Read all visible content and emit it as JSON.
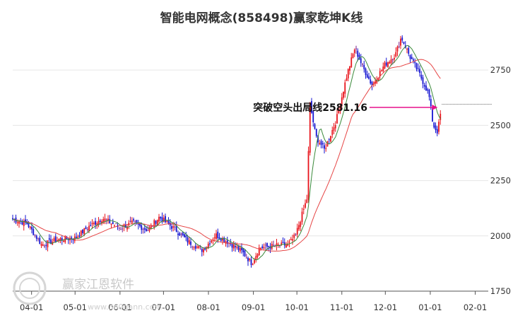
{
  "chart_data": {
    "type": "candlestick",
    "title": "智能电网概念(858498)赢家乾坤K线",
    "x_tick_labels": [
      "04-01",
      "05-01",
      "06-01",
      "07-01",
      "08-01",
      "09-01",
      "10-01",
      "11-01",
      "12-01",
      "01-01",
      "02-01"
    ],
    "y_ticks": [
      1750,
      2000,
      2250,
      2500,
      2750
    ],
    "ylim": [
      1750,
      2920
    ],
    "annotation": {
      "text": "突破空头出局线2581.16",
      "value": 2581.16
    },
    "last_close": 2596,
    "close_path": [
      {
        "date": "03-19",
        "close": 2075
      },
      {
        "date": "03-29",
        "close": 2055
      },
      {
        "date": "04-08",
        "close": 1960
      },
      {
        "date": "04-20",
        "close": 1985
      },
      {
        "date": "05-01",
        "close": 1990
      },
      {
        "date": "05-10",
        "close": 2040
      },
      {
        "date": "05-20",
        "close": 2080
      },
      {
        "date": "06-01",
        "close": 2035
      },
      {
        "date": "06-10",
        "close": 2060
      },
      {
        "date": "06-20",
        "close": 2025
      },
      {
        "date": "06-28",
        "close": 2085
      },
      {
        "date": "07-08",
        "close": 2035
      },
      {
        "date": "07-18",
        "close": 1975
      },
      {
        "date": "07-28",
        "close": 1935
      },
      {
        "date": "08-06",
        "close": 2005
      },
      {
        "date": "08-15",
        "close": 1970
      },
      {
        "date": "08-24",
        "close": 1930
      },
      {
        "date": "08-31",
        "close": 1875
      },
      {
        "date": "09-05",
        "close": 1945
      },
      {
        "date": "09-15",
        "close": 1955
      },
      {
        "date": "09-25",
        "close": 1960
      },
      {
        "date": "09-30",
        "close": 2000
      },
      {
        "date": "10-08",
        "close": 2170
      },
      {
        "date": "10-10",
        "close": 2600
      },
      {
        "date": "10-14",
        "close": 2450
      },
      {
        "date": "10-20",
        "close": 2390
      },
      {
        "date": "10-28",
        "close": 2520
      },
      {
        "date": "11-05",
        "close": 2740
      },
      {
        "date": "11-10",
        "close": 2850
      },
      {
        "date": "11-15",
        "close": 2770
      },
      {
        "date": "11-22",
        "close": 2680
      },
      {
        "date": "11-30",
        "close": 2770
      },
      {
        "date": "12-08",
        "close": 2820
      },
      {
        "date": "12-12",
        "close": 2900
      },
      {
        "date": "12-18",
        "close": 2810
      },
      {
        "date": "12-24",
        "close": 2740
      },
      {
        "date": "12-31",
        "close": 2640
      },
      {
        "date": "01-03",
        "close": 2500
      },
      {
        "date": "01-06",
        "close": 2470
      },
      {
        "date": "01-09",
        "close": 2590
      }
    ]
  },
  "watermark": {
    "text": "赢家江恩软件",
    "url": "www.360gann.com"
  },
  "colors": {
    "up": "#e8141c",
    "down": "#1414d2",
    "flat": "#7a1f8c",
    "ma_long": "#e64545",
    "ma_short": "#3b8a3b",
    "annot_arrow": "#e6108c",
    "grid": "#e6e6e6"
  }
}
